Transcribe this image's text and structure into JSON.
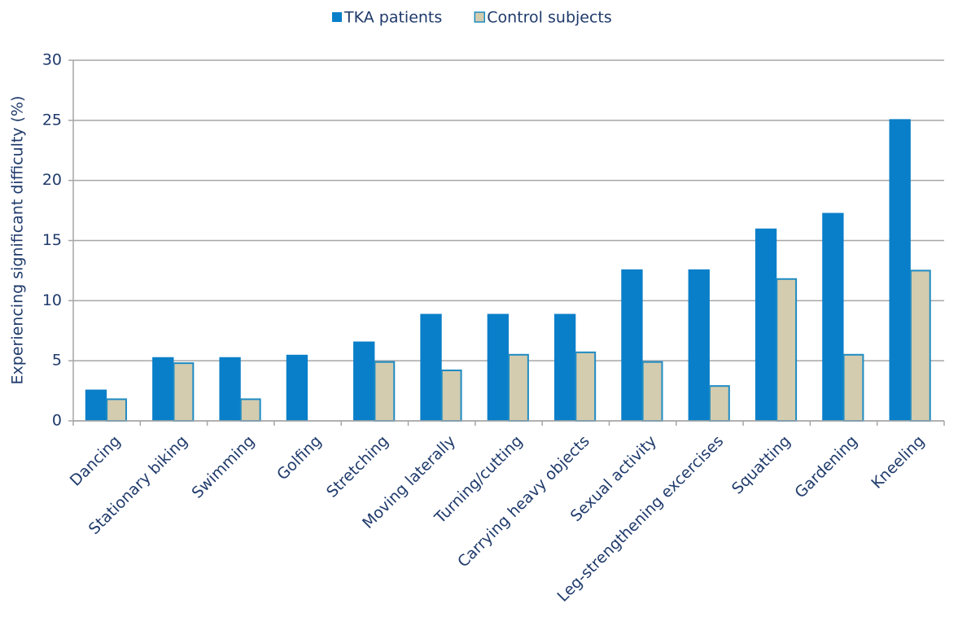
{
  "chart_data": {
    "type": "bar",
    "ylabel": "Experiencing significant difficulty (%)",
    "categories": [
      "Dancing",
      "Stationary biking",
      "Swimming",
      "Golfing",
      "Stretching",
      "Moving laterally",
      "Turning/cutting",
      "Carrying heavy objects",
      "Sexual activity",
      "Leg-strengthening excercises",
      "Squatting",
      "Gardening",
      "Kneeling"
    ],
    "series": [
      {
        "name": "TKA patients",
        "color": "#0A7FC9",
        "values": [
          2.6,
          5.3,
          5.3,
          5.5,
          6.6,
          8.9,
          8.9,
          8.9,
          12.6,
          12.6,
          16.0,
          17.3,
          25.1
        ]
      },
      {
        "name": "Control subjects",
        "color": "#D3CCAF",
        "edgecolor": "#1E8BC3",
        "values": [
          1.8,
          4.8,
          1.8,
          0,
          4.9,
          4.2,
          5.5,
          5.7,
          4.9,
          2.9,
          11.8,
          5.5,
          12.5
        ]
      }
    ],
    "ylim": [
      0,
      30
    ],
    "yticks": [
      0,
      5,
      10,
      15,
      20,
      25,
      30
    ],
    "grid": true,
    "legend": "top"
  }
}
